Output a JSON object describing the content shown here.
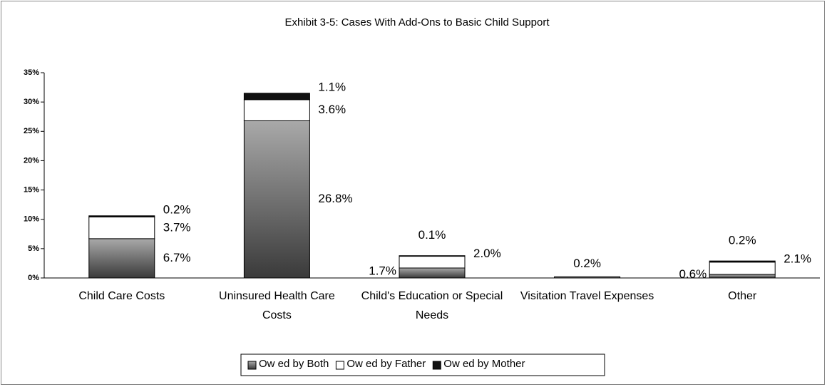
{
  "chart_data": {
    "type": "stacked-bar",
    "title": "Exhibit 3-5: Cases With Add-Ons to Basic Child Support",
    "categories": [
      "Child Care Costs",
      "Uninsured Health Care Costs",
      "Child's Education or Special Needs",
      "Visitation Travel Expenses",
      "Other"
    ],
    "series": [
      {
        "name": "Ow ed by Both",
        "color": "#8a8a8a",
        "values": [
          6.7,
          26.8,
          1.7,
          0.2,
          0.6
        ],
        "value_labels": [
          "6.7%",
          "26.8%",
          "1.7%",
          "0.2%",
          "0.6%"
        ]
      },
      {
        "name": "Ow ed by Father",
        "color": "#ffffff",
        "values": [
          3.7,
          3.6,
          2.0,
          null,
          2.1
        ],
        "value_labels": [
          "3.7%",
          "3.6%",
          "2.0%",
          null,
          "2.1%"
        ]
      },
      {
        "name": "Ow ed by Mother",
        "color": "#111111",
        "values": [
          0.2,
          1.1,
          0.1,
          null,
          0.2
        ],
        "value_labels": [
          "0.2%",
          "1.1%",
          "0.1%",
          null,
          "0.2%"
        ]
      }
    ],
    "ylim": [
      0,
      35
    ],
    "yticks": [
      {
        "value": 0,
        "label": "0%"
      },
      {
        "value": 5,
        "label": "5%"
      },
      {
        "value": 10,
        "label": "10%"
      },
      {
        "value": 15,
        "label": "15%"
      },
      {
        "value": 20,
        "label": "20%"
      },
      {
        "value": 25,
        "label": "25%"
      },
      {
        "value": 30,
        "label": "30%"
      },
      {
        "value": 35,
        "label": "35%"
      }
    ],
    "legend": "bottom"
  }
}
